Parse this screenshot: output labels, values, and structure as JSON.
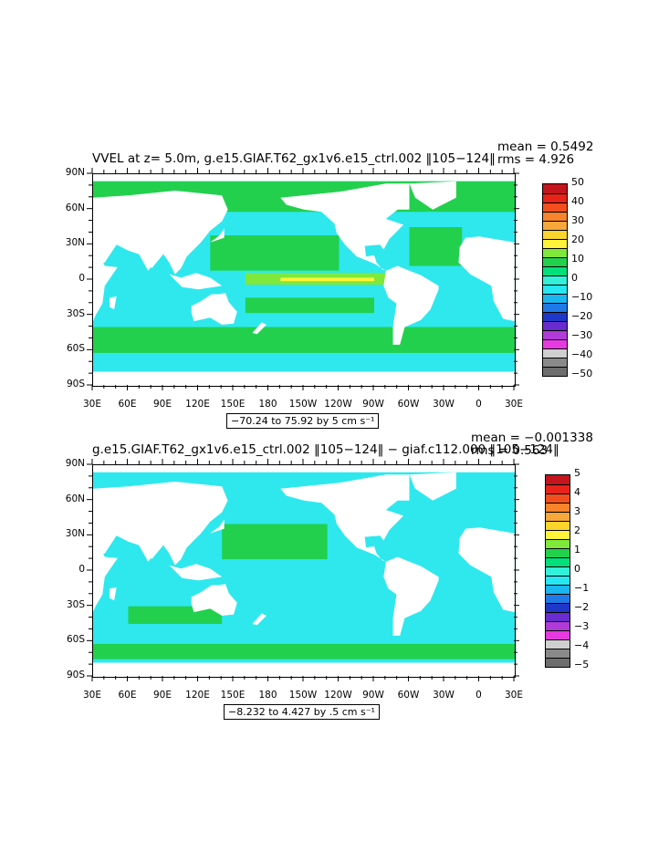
{
  "panels": [
    {
      "title": "VVEL at z=    5.0m, g.e15.GIAF.T62_gx1v6.e15_ctrl.002 ‖105−124‖",
      "mean_label": "mean = 0.5492",
      "rms_label": "rms = 4.926",
      "range_label": "−70.24 to 75.92 by 5 cm s⁻¹",
      "colorbar_labels": [
        "50",
        "40",
        "30",
        "20",
        "10",
        "0",
        "−10",
        "−20",
        "−30",
        "−40",
        "−50"
      ],
      "colorbar_colors": [
        "#c4141c",
        "#e8231a",
        "#f24e1e",
        "#f7832a",
        "#f8a83a",
        "#fbd42c",
        "#fff23a",
        "#7fe83a",
        "#21d14b",
        "#00e07a",
        "#33f0d8",
        "#26e8f2",
        "#1ab6f0",
        "#1f7ae8",
        "#1e37c8",
        "#6a2bd0",
        "#b13ad8",
        "#e63ae0",
        "#cfcfcf",
        "#8a8a8a",
        "#6e6e6e"
      ]
    },
    {
      "title": "g.e15.GIAF.T62_gx1v6.e15_ctrl.002 ‖105−124‖ − giaf.c112.000 ‖105−124‖",
      "mean_label": "mean = −0.001338",
      "rms_label": "rms = 0.563",
      "range_label": "−8.232 to 4.427 by .5 cm s⁻¹",
      "colorbar_labels": [
        "5",
        "4",
        "3",
        "2",
        "1",
        "0",
        "−1",
        "−2",
        "−3",
        "−4",
        "−5"
      ],
      "colorbar_colors": [
        "#c4141c",
        "#e8231a",
        "#f24e1e",
        "#f7832a",
        "#f8a83a",
        "#fbd42c",
        "#fff23a",
        "#7fe83a",
        "#21d14b",
        "#00e07a",
        "#33f0d8",
        "#26e8f2",
        "#1ab6f0",
        "#1f7ae8",
        "#1e37c8",
        "#6a2bd0",
        "#b13ad8",
        "#e63ae0",
        "#cfcfcf",
        "#8a8a8a",
        "#6e6e6e"
      ]
    }
  ],
  "lat_labels": [
    "90N",
    "60N",
    "30N",
    "0",
    "30S",
    "60S",
    "90S"
  ],
  "lon_labels": [
    "30E",
    "60E",
    "90E",
    "120E",
    "150E",
    "180",
    "150W",
    "120W",
    "90W",
    "60W",
    "30W",
    "0",
    "30E"
  ],
  "colors": {
    "ocean_green": "#22d04e",
    "ocean_cyan": "#2ee8ee",
    "land": "#ffffff"
  }
}
